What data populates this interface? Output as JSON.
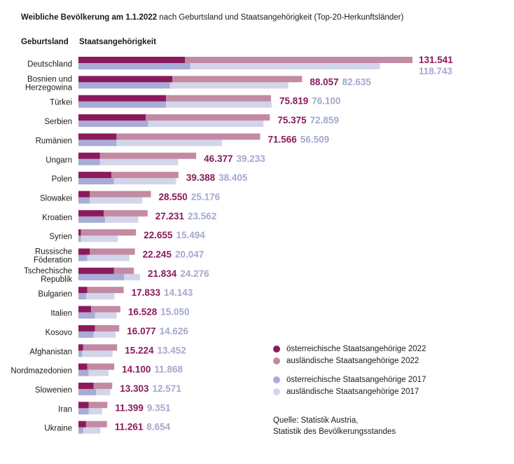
{
  "header": {
    "title_bold": "Weibliche Bevölkerung am 1.1.2022",
    "title_rest": " nach Geburtsland und Staatsangehörigkeit (Top-20-Herkunftsländer)",
    "col_birth": "Geburtsland",
    "col_citizenship": "Staatsangehörigkeit"
  },
  "legend": [
    {
      "label": "österreichische Staatsangehörige 2022",
      "color": "#8b1a5c"
    },
    {
      "label": "ausländische Staatsangehörige 2022",
      "color": "#c48aa3"
    },
    {
      "label": "österreichische Staatsangehörige 2017",
      "color": "#a8acd6"
    },
    {
      "label": "ausländische Staatsangehörige 2017",
      "color": "#d3d5ea"
    }
  ],
  "source": {
    "line1": "Quelle: Statistik Austria,",
    "line2": "Statistik des Bevölkerungsstandes"
  },
  "colors": {
    "aut2022": "#8b1a5c",
    "for2022": "#c48aa3",
    "aut2017": "#a8acd6",
    "for2017": "#d3d5ea",
    "label2022": "#8b1a5c",
    "label2017": "#a3a8cf"
  },
  "chart_data": {
    "type": "bar",
    "orientation": "horizontal",
    "stacked": true,
    "xlim": [
      0,
      131541
    ],
    "categories": [
      [
        "Deutschland"
      ],
      [
        "Bosnien und",
        "Herzegowina"
      ],
      [
        "Türkei"
      ],
      [
        "Serbien"
      ],
      [
        "Rumänien"
      ],
      [
        "Ungarn"
      ],
      [
        "Polen"
      ],
      [
        "Slowakei"
      ],
      [
        "Kroatien"
      ],
      [
        "Syrien"
      ],
      [
        "Russische",
        "Föderation"
      ],
      [
        "Tschechische",
        "Republik"
      ],
      [
        "Bulgarien"
      ],
      [
        "Italien"
      ],
      [
        "Kosovo"
      ],
      [
        "Afghanistan"
      ],
      [
        "Nordmazedonien"
      ],
      [
        "Slowenien"
      ],
      [
        "Iran"
      ],
      [
        "Ukraine"
      ]
    ],
    "total_2022_labels": [
      "131.541",
      "88.057",
      "75.819",
      "75.375",
      "71.566",
      "46.377",
      "39.388",
      "28.550",
      "27.231",
      "22.655",
      "22.245",
      "21.834",
      "17.833",
      "16.528",
      "16.077",
      "15.224",
      "14.100",
      "13.303",
      "11.399",
      "11.261"
    ],
    "total_2017_labels": [
      "118.743",
      "82.635",
      "76.100",
      "72.859",
      "56.509",
      "39.233",
      "38.405",
      "25.176",
      "23.562",
      "15.494",
      "20.047",
      "24.276",
      "14.143",
      "15.050",
      "14.626",
      "13.452",
      "11.868",
      "12.571",
      "9.351",
      "8.654"
    ],
    "series": [
      {
        "name": "österreichische Staatsangehörige 2022",
        "year": 2022,
        "kind": "austrian",
        "values": [
          42000,
          37000,
          34500,
          26500,
          15000,
          8500,
          13000,
          4500,
          10000,
          1000,
          4500,
          14000,
          3500,
          5000,
          6500,
          1800,
          3500,
          6000,
          4000,
          3000
        ]
      },
      {
        "name": "ausländische Staatsangehörige 2022",
        "year": 2022,
        "kind": "foreign",
        "values": [
          89541,
          51057,
          41319,
          48875,
          56566,
          37877,
          26388,
          24050,
          17231,
          21655,
          17745,
          7834,
          14333,
          11528,
          9577,
          13424,
          10600,
          7303,
          7399,
          8261
        ]
      },
      {
        "name": "österreichische Staatsangehörige 2017",
        "year": 2017,
        "kind": "austrian",
        "values": [
          44000,
          36000,
          34500,
          27500,
          15000,
          8500,
          14000,
          4500,
          10500,
          1000,
          3500,
          18000,
          3000,
          6500,
          6000,
          1500,
          4000,
          7000,
          4000,
          2000
        ]
      },
      {
        "name": "ausländische Staatsangehörige 2017",
        "year": 2017,
        "kind": "foreign",
        "values": [
          74743,
          46635,
          41600,
          45359,
          41509,
          30733,
          24405,
          20676,
          13062,
          14494,
          16547,
          6276,
          11143,
          8550,
          8626,
          11952,
          7868,
          5571,
          5351,
          6654
        ]
      }
    ]
  }
}
